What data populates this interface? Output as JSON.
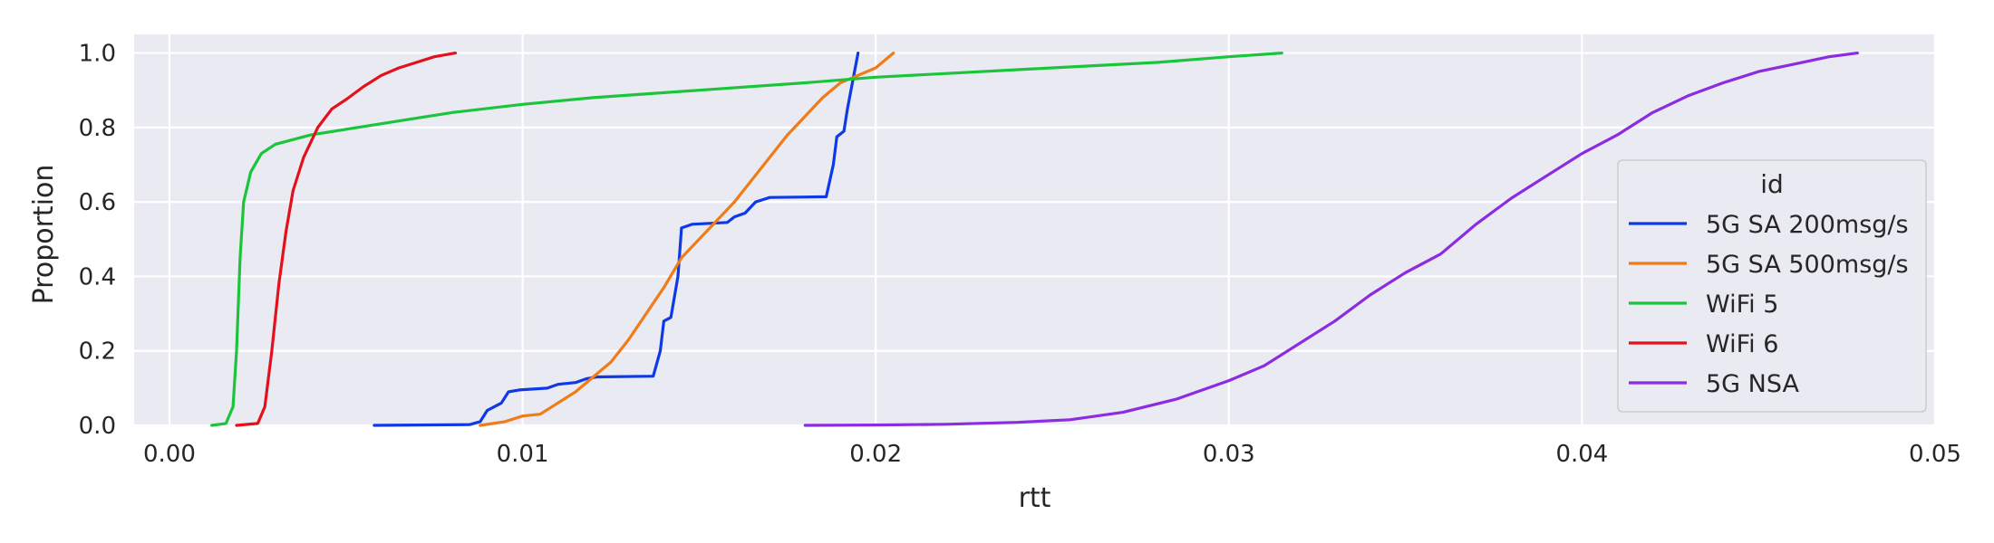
{
  "chart_data": {
    "type": "line",
    "title": "",
    "xlabel": "rtt",
    "ylabel": "Proportion",
    "xlim": [
      -0.001,
      0.05
    ],
    "ylim": [
      0.0,
      1.05
    ],
    "x_ticks": [
      "0.00",
      "0.01",
      "0.02",
      "0.03",
      "0.04",
      "0.05"
    ],
    "y_ticks": [
      "0.0",
      "0.2",
      "0.4",
      "0.6",
      "0.8",
      "1.0"
    ],
    "grid": true,
    "background": "#eaeaf2",
    "legend": {
      "title": "id",
      "position": "center-right"
    },
    "series": [
      {
        "name": "5G SA 200msg/s",
        "color": "#0d3ae6",
        "points": [
          [
            0.0058,
            0.0
          ],
          [
            0.0085,
            0.002
          ],
          [
            0.0088,
            0.01
          ],
          [
            0.009,
            0.04
          ],
          [
            0.0092,
            0.05
          ],
          [
            0.0094,
            0.06
          ],
          [
            0.0096,
            0.09
          ],
          [
            0.0099,
            0.095
          ],
          [
            0.0107,
            0.1
          ],
          [
            0.011,
            0.11
          ],
          [
            0.0115,
            0.115
          ],
          [
            0.0118,
            0.125
          ],
          [
            0.0121,
            0.13
          ],
          [
            0.0137,
            0.132
          ],
          [
            0.0139,
            0.2
          ],
          [
            0.014,
            0.28
          ],
          [
            0.0142,
            0.29
          ],
          [
            0.0144,
            0.4
          ],
          [
            0.0145,
            0.53
          ],
          [
            0.0148,
            0.54
          ],
          [
            0.0158,
            0.545
          ],
          [
            0.016,
            0.56
          ],
          [
            0.0163,
            0.57
          ],
          [
            0.0166,
            0.6
          ],
          [
            0.017,
            0.612
          ],
          [
            0.0186,
            0.614
          ],
          [
            0.0188,
            0.7
          ],
          [
            0.0189,
            0.775
          ],
          [
            0.0191,
            0.79
          ],
          [
            0.0192,
            0.85
          ],
          [
            0.0194,
            0.95
          ],
          [
            0.0195,
            1.0
          ]
        ]
      },
      {
        "name": "5G SA 500msg/s",
        "color": "#f07b17",
        "points": [
          [
            0.0088,
            0.0
          ],
          [
            0.0095,
            0.01
          ],
          [
            0.01,
            0.025
          ],
          [
            0.0105,
            0.03
          ],
          [
            0.011,
            0.06
          ],
          [
            0.0115,
            0.09
          ],
          [
            0.012,
            0.13
          ],
          [
            0.0125,
            0.17
          ],
          [
            0.013,
            0.23
          ],
          [
            0.0135,
            0.3
          ],
          [
            0.014,
            0.37
          ],
          [
            0.0145,
            0.45
          ],
          [
            0.015,
            0.5
          ],
          [
            0.0155,
            0.55
          ],
          [
            0.016,
            0.6
          ],
          [
            0.0165,
            0.66
          ],
          [
            0.017,
            0.72
          ],
          [
            0.0175,
            0.78
          ],
          [
            0.018,
            0.83
          ],
          [
            0.0185,
            0.88
          ],
          [
            0.019,
            0.92
          ],
          [
            0.0195,
            0.94
          ],
          [
            0.02,
            0.96
          ],
          [
            0.0205,
            1.0
          ]
        ]
      },
      {
        "name": "WiFi 5",
        "color": "#1bc53b",
        "points": [
          [
            0.0012,
            0.0
          ],
          [
            0.0016,
            0.005
          ],
          [
            0.0018,
            0.05
          ],
          [
            0.0019,
            0.2
          ],
          [
            0.002,
            0.45
          ],
          [
            0.0021,
            0.6
          ],
          [
            0.0023,
            0.68
          ],
          [
            0.0026,
            0.73
          ],
          [
            0.003,
            0.755
          ],
          [
            0.004,
            0.78
          ],
          [
            0.006,
            0.81
          ],
          [
            0.008,
            0.84
          ],
          [
            0.01,
            0.862
          ],
          [
            0.012,
            0.88
          ],
          [
            0.015,
            0.9
          ],
          [
            0.018,
            0.92
          ],
          [
            0.02,
            0.935
          ],
          [
            0.022,
            0.945
          ],
          [
            0.025,
            0.96
          ],
          [
            0.028,
            0.975
          ],
          [
            0.03,
            0.99
          ],
          [
            0.0315,
            1.0
          ]
        ]
      },
      {
        "name": "WiFi 6",
        "color": "#e3111b",
        "points": [
          [
            0.0019,
            0.0
          ],
          [
            0.0025,
            0.005
          ],
          [
            0.0027,
            0.05
          ],
          [
            0.0029,
            0.2
          ],
          [
            0.0031,
            0.38
          ],
          [
            0.0033,
            0.52
          ],
          [
            0.0035,
            0.63
          ],
          [
            0.0038,
            0.72
          ],
          [
            0.0042,
            0.8
          ],
          [
            0.0046,
            0.85
          ],
          [
            0.005,
            0.875
          ],
          [
            0.0055,
            0.91
          ],
          [
            0.006,
            0.94
          ],
          [
            0.0065,
            0.96
          ],
          [
            0.007,
            0.975
          ],
          [
            0.0075,
            0.99
          ],
          [
            0.0081,
            1.0
          ]
        ]
      },
      {
        "name": "5G NSA",
        "color": "#8b2be2",
        "points": [
          [
            0.018,
            0.0
          ],
          [
            0.02,
            0.001
          ],
          [
            0.022,
            0.003
          ],
          [
            0.024,
            0.008
          ],
          [
            0.0255,
            0.015
          ],
          [
            0.027,
            0.035
          ],
          [
            0.0285,
            0.07
          ],
          [
            0.03,
            0.12
          ],
          [
            0.031,
            0.16
          ],
          [
            0.032,
            0.22
          ],
          [
            0.033,
            0.28
          ],
          [
            0.034,
            0.35
          ],
          [
            0.035,
            0.41
          ],
          [
            0.036,
            0.46
          ],
          [
            0.037,
            0.54
          ],
          [
            0.038,
            0.61
          ],
          [
            0.039,
            0.67
          ],
          [
            0.04,
            0.73
          ],
          [
            0.041,
            0.78
          ],
          [
            0.042,
            0.84
          ],
          [
            0.043,
            0.885
          ],
          [
            0.044,
            0.92
          ],
          [
            0.045,
            0.95
          ],
          [
            0.046,
            0.97
          ],
          [
            0.047,
            0.99
          ],
          [
            0.0478,
            1.0
          ]
        ]
      }
    ]
  }
}
